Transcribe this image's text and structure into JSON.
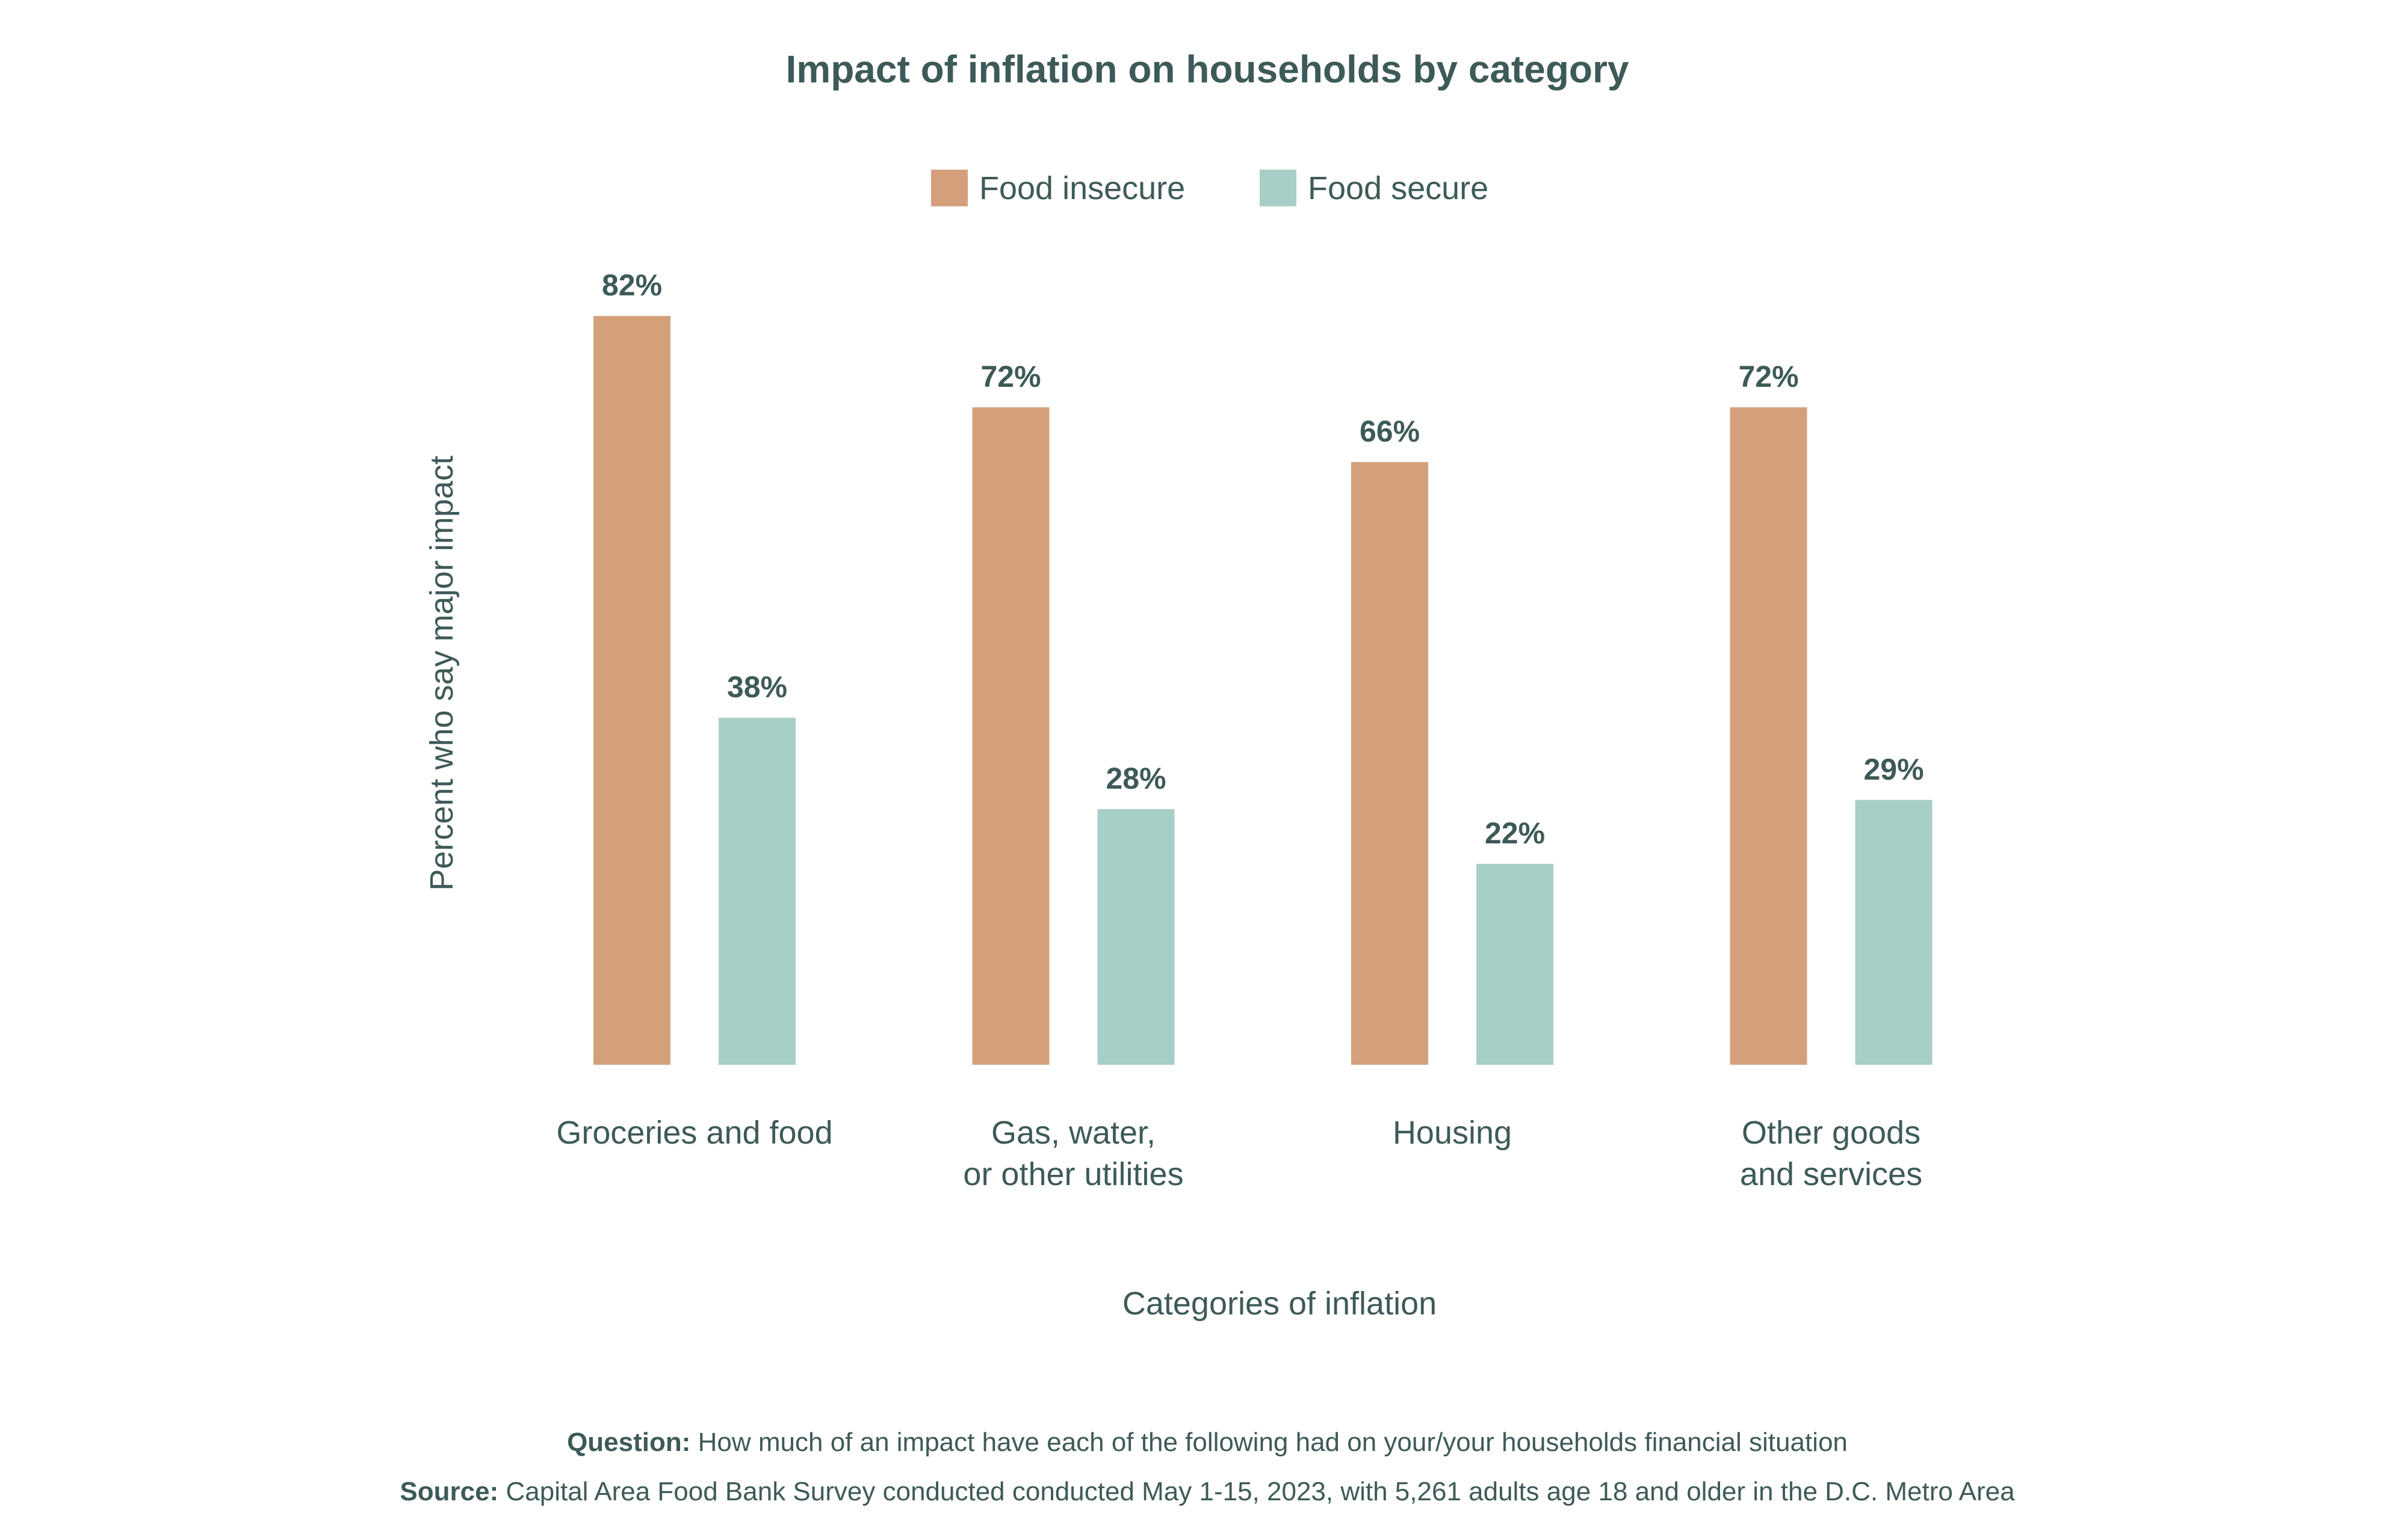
{
  "chart_data": {
    "type": "bar",
    "title": "Impact of inflation on households by category",
    "xlabel": "Categories of inflation",
    "ylabel": "Percent who say major impact",
    "categories": [
      [
        "Groceries and food"
      ],
      [
        "Gas, water,",
        "or other utilities"
      ],
      [
        "Housing"
      ],
      [
        "Other goods",
        "and services"
      ]
    ],
    "series": [
      {
        "name": "Food insecure",
        "color": "#d4a07b",
        "values": [
          82,
          72,
          66,
          72
        ],
        "labels": [
          "82%",
          "72%",
          "66%",
          "72%"
        ]
      },
      {
        "name": "Food secure",
        "color": "#a7cec7",
        "values": [
          38,
          28,
          22,
          29
        ],
        "labels": [
          "38%",
          "28%",
          "22%",
          "29%"
        ]
      }
    ],
    "ylim": [
      0,
      100
    ],
    "grid": false,
    "legend_position": "top-center",
    "text_color": "#3d5a58"
  },
  "footer": {
    "question_label": "Question:",
    "question_text": " How much of an impact have each of the following had on your/your households financial situation",
    "source_label": "Source:",
    "source_text": " Capital Area Food Bank Survey conducted conducted May 1-15, 2023, with 5,261 adults age 18 and older in the D.C. Metro Area"
  }
}
